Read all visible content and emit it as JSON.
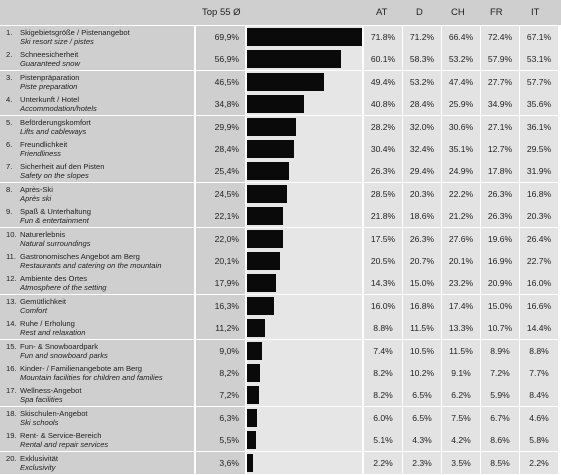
{
  "chart_data": {
    "type": "table",
    "columns": {
      "avg": "Top 55 Ø",
      "countries": [
        "AT",
        "D",
        "CH",
        "FR",
        "IT"
      ]
    },
    "rows": [
      {
        "num": "1.",
        "de": "Skigebietsgröße / Pistenangebot",
        "en": "Ski resort size / pistes",
        "avg": "69,9%",
        "avg_value": 69.9,
        "values": [
          "71.8%",
          "71.2%",
          "66.4%",
          "72.4%",
          "67.1%"
        ]
      },
      {
        "num": "2.",
        "de": "Schneesicherheit",
        "en": "Guaranteed snow",
        "avg": "56,9%",
        "avg_value": 56.9,
        "values": [
          "60.1%",
          "58.3%",
          "53.2%",
          "57.9%",
          "53.1%"
        ]
      },
      {
        "num": "3.",
        "de": "Pistenpräparation",
        "en": "Piste preparation",
        "avg": "46,5%",
        "avg_value": 46.5,
        "values": [
          "49.4%",
          "53.2%",
          "47.4%",
          "27.7%",
          "57.7%"
        ]
      },
      {
        "num": "4.",
        "de": "Unterkunft / Hotel",
        "en": "Accommodation/hotels",
        "avg": "34,8%",
        "avg_value": 34.8,
        "values": [
          "40.8%",
          "28.4%",
          "25.9%",
          "34.9%",
          "35.6%"
        ]
      },
      {
        "num": "5.",
        "de": "Beförderungskomfort",
        "en": "Lifts and cableways",
        "avg": "29,9%",
        "avg_value": 29.9,
        "values": [
          "28.2%",
          "32.0%",
          "30.6%",
          "27.1%",
          "36.1%"
        ]
      },
      {
        "num": "6.",
        "de": "Freundlichkeit",
        "en": "Friendliness",
        "avg": "28,4%",
        "avg_value": 28.4,
        "values": [
          "30.4%",
          "32.4%",
          "35.1%",
          "12.7%",
          "29.5%"
        ]
      },
      {
        "num": "7.",
        "de": "Sicherheit auf den Pisten",
        "en": "Safety on the slopes",
        "avg": "25,4%",
        "avg_value": 25.4,
        "values": [
          "26.3%",
          "29.4%",
          "24.9%",
          "17.8%",
          "31.9%"
        ]
      },
      {
        "num": "8.",
        "de": "Après-Ski",
        "en": "Après ski",
        "avg": "24,5%",
        "avg_value": 24.5,
        "values": [
          "28.5%",
          "20.3%",
          "22.2%",
          "26.3%",
          "16.8%"
        ]
      },
      {
        "num": "9.",
        "de": "Spaß & Unterhaltung",
        "en": "Fun & entertainment",
        "avg": "22,1%",
        "avg_value": 22.1,
        "values": [
          "21.8%",
          "18.6%",
          "21.2%",
          "26.3%",
          "20.3%"
        ]
      },
      {
        "num": "10.",
        "de": "Naturerlebnis",
        "en": "Natural surroundings",
        "avg": "22,0%",
        "avg_value": 22.0,
        "values": [
          "17.5%",
          "26.3%",
          "27.6%",
          "19.6%",
          "26.4%"
        ]
      },
      {
        "num": "11.",
        "de": "Gastronomisches Angebot am Berg",
        "en": "Restaurants and catering on the mountain",
        "avg": "20,1%",
        "avg_value": 20.1,
        "values": [
          "20.5%",
          "20.7%",
          "20.1%",
          "16.9%",
          "22.7%"
        ]
      },
      {
        "num": "12.",
        "de": "Ambiente des Ortes",
        "en": "Atmosphere of the setting",
        "avg": "17,9%",
        "avg_value": 17.9,
        "values": [
          "14.3%",
          "15.0%",
          "23.2%",
          "20.9%",
          "16.0%"
        ]
      },
      {
        "num": "13.",
        "de": "Gemütlichkeit",
        "en": "Comfort",
        "avg": "16,3%",
        "avg_value": 16.3,
        "values": [
          "16.0%",
          "16.8%",
          "17.4%",
          "15.0%",
          "16.6%"
        ]
      },
      {
        "num": "14.",
        "de": "Ruhe / Erholung",
        "en": "Rest and relaxation",
        "avg": "11,2%",
        "avg_value": 11.2,
        "values": [
          "8.8%",
          "11.5%",
          "13.3%",
          "10.7%",
          "14.4%"
        ]
      },
      {
        "num": "15.",
        "de": "Fun- & Snowboardpark",
        "en": "Fun and snowboard parks",
        "avg": "9,0%",
        "avg_value": 9.0,
        "values": [
          "7.4%",
          "10.5%",
          "11.5%",
          "8.9%",
          "8.8%"
        ]
      },
      {
        "num": "16.",
        "de": "Kinder- / Familienangebote am Berg",
        "en": "Mountain facilities for children and families",
        "avg": "8,2%",
        "avg_value": 8.2,
        "values": [
          "8.2%",
          "10.2%",
          "9.1%",
          "7.2%",
          "7.7%"
        ]
      },
      {
        "num": "17.",
        "de": "Wellness-Angebot",
        "en": "Spa facilities",
        "avg": "7,2%",
        "avg_value": 7.2,
        "values": [
          "8.2%",
          "6.5%",
          "6.2%",
          "5.9%",
          "8.4%"
        ]
      },
      {
        "num": "18.",
        "de": "Skischulen-Angebot",
        "en": "Ski schools",
        "avg": "6,3%",
        "avg_value": 6.3,
        "values": [
          "6.0%",
          "6.5%",
          "7.5%",
          "6.7%",
          "4.6%"
        ]
      },
      {
        "num": "19.",
        "de": "Rent- & Service-Bereich",
        "en": "Rental and repair services",
        "avg": "5,5%",
        "avg_value": 5.5,
        "values": [
          "5.1%",
          "4.3%",
          "4.2%",
          "8.6%",
          "5.8%"
        ]
      },
      {
        "num": "20.",
        "de": "Exklusivität",
        "en": "Exclusivity",
        "avg": "3,6%",
        "avg_value": 3.6,
        "values": [
          "2.2%",
          "2.3%",
          "3.5%",
          "8.5%",
          "2.2%"
        ]
      }
    ],
    "bar_color": "#0a0a0a",
    "bar_max": 69.9
  }
}
